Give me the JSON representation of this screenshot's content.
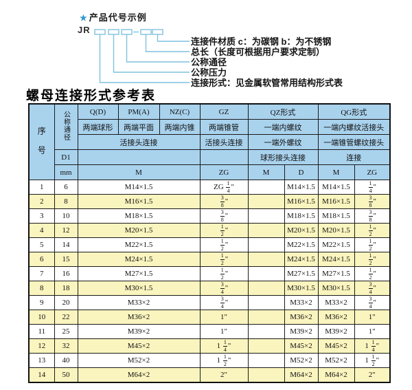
{
  "diagram": {
    "star_icon": "★",
    "title": "产品代号示例",
    "prefix": "JR",
    "labels": [
      "连接件材质  c：为碳钢  b：为不锈钢",
      "总长（长度可根据用户要求定制）",
      "公称通径",
      "公称压力",
      "连接形式：见金属软管常用结构形式表"
    ],
    "colors": {
      "accent_blue": "#2f97ce",
      "line_blue": "#7fc2de"
    }
  },
  "table": {
    "title": "螺母连接形式参考表",
    "colors": {
      "header_bg": "#a9d2ed",
      "row_alt_bg": "#faf4be",
      "border": "#1a1a1a"
    },
    "header": {
      "seq": "序号",
      "dn": "公称通径",
      "d1": "D1",
      "mm": "mm",
      "col_q": "Q(D)",
      "col_pm": "PM(A)",
      "col_nz": "NZ(C)",
      "col_gz": "GZ",
      "col_qz": "QZ形式",
      "col_qg": "QG形式",
      "sub_q": "两端球形",
      "sub_pm": "两端平面",
      "sub_nz": "两端内锥",
      "sub_gz": "两端锥管",
      "sub_qz": "一端内螺纹",
      "sub_qg": "一端内螺纹活接头",
      "row3_qpmnz": "活接头连接",
      "row3_gz": "活接头连接",
      "row3_qz": "一端外螺纹",
      "row3_qg": "一端锥管螺纹接头",
      "row4_qz": "球形接头连接",
      "row4_qg": "连接",
      "m_label": "M",
      "zg_label": "ZG",
      "qz_m": "M",
      "qz_d": "D",
      "qg_m": "M",
      "qg_zg": "ZG"
    },
    "rows": [
      {
        "no": "1",
        "mm": "6",
        "m": "M14×1.5",
        "zg": "ZG 1/4\"",
        "qz_m": "",
        "qz_d": "M14×1.5",
        "qg_m": "M14×1.5",
        "qg_zg": "1/4\""
      },
      {
        "no": "2",
        "mm": "8",
        "m": "M16×1.5",
        "zg": "3/8\"",
        "qz_m": "",
        "qz_d": "M16×1.5",
        "qg_m": "M16×1.5",
        "qg_zg": "3/8\""
      },
      {
        "no": "3",
        "mm": "10",
        "m": "M18×1.5",
        "zg": "3/8\"",
        "qz_m": "",
        "qz_d": "M18×1.5",
        "qg_m": "M18×1.5",
        "qg_zg": "3/8\""
      },
      {
        "no": "4",
        "mm": "12",
        "m": "M20×1.5",
        "zg": "1/2\"",
        "qz_m": "",
        "qz_d": "M20×1.5",
        "qg_m": "M20×1.5",
        "qg_zg": "1/2\""
      },
      {
        "no": "5",
        "mm": "14",
        "m": "M22×1.5",
        "zg": "1/2\"",
        "qz_m": "",
        "qz_d": "M22×1.5",
        "qg_m": "M22×1.5",
        "qg_zg": "1/2\""
      },
      {
        "no": "6",
        "mm": "15",
        "m": "M24×1.5",
        "zg": "1/2\"",
        "qz_m": "",
        "qz_d": "M24×1.5",
        "qg_m": "M24×1.5",
        "qg_zg": "1/2\""
      },
      {
        "no": "7",
        "mm": "16",
        "m": "M27×1.5",
        "zg": "1/2\"",
        "qz_m": "",
        "qz_d": "M27×1.5",
        "qg_m": "M27×1.5",
        "qg_zg": "1/2\""
      },
      {
        "no": "8",
        "mm": "18",
        "m": "M30×1.5",
        "zg": "3/4\"",
        "qz_m": "",
        "qz_d": "M30×1.5",
        "qg_m": "M30×1.5",
        "qg_zg": "3/4\""
      },
      {
        "no": "9",
        "mm": "20",
        "m": "M33×2",
        "zg": "3/4\"",
        "qz_m": "",
        "qz_d": "M33×2",
        "qg_m": "M33×2",
        "qg_zg": "3/4\""
      },
      {
        "no": "10",
        "mm": "22",
        "m": "M36×2",
        "zg": "1\"",
        "qz_m": "",
        "qz_d": "M36×2",
        "qg_m": "M36×2",
        "qg_zg": "1\""
      },
      {
        "no": "11",
        "mm": "25",
        "m": "M39×2",
        "zg": "1\"",
        "qz_m": "",
        "qz_d": "M39×2",
        "qg_m": "M39×2",
        "qg_zg": "1\""
      },
      {
        "no": "12",
        "mm": "32",
        "m": "M45×2",
        "zg": "1 1/4\"",
        "qz_m": "",
        "qz_d": "M45×2",
        "qg_m": "M45×2",
        "qg_zg": "1 1/4\""
      },
      {
        "no": "13",
        "mm": "40",
        "m": "M52×2",
        "zg": "1 1/2\"",
        "qz_m": "",
        "qz_d": "M52×2",
        "qg_m": "M52×2",
        "qg_zg": "1 1/2\""
      },
      {
        "no": "14",
        "mm": "50",
        "m": "M64×2",
        "zg": "2\"",
        "qz_m": "",
        "qz_d": "M64×2",
        "qg_m": "M64×2",
        "qg_zg": "2\""
      }
    ]
  }
}
